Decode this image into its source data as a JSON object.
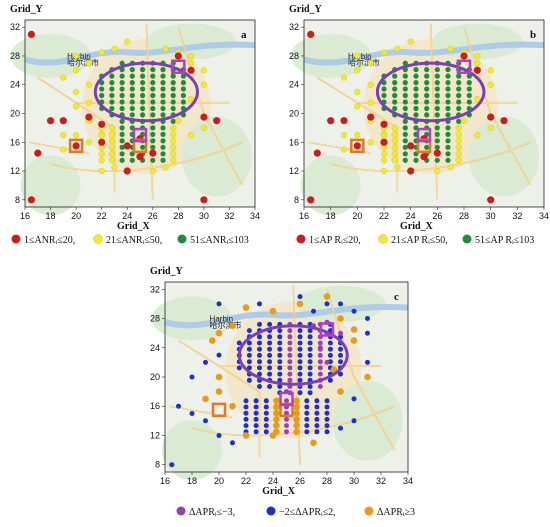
{
  "colors": {
    "red": "#c81e1e",
    "yellow": "#f2ea2a",
    "green": "#1f8c3a",
    "purple": "#9b3fb8",
    "blue": "#1e2fd0",
    "orange": "#e89a1a",
    "ellipse": "#7a3fb5",
    "square_purple": "#b03fc8",
    "square_orange": "#e07a20"
  },
  "chart_data": [
    {
      "type": "scatter",
      "panel_label": "a",
      "map_label": "Harbin",
      "map_label_cn": "哈尔滨市",
      "xlabel": "Grid_X",
      "ylabel": "Grid_Y",
      "xlim": [
        16,
        34
      ],
      "ylim": [
        7,
        33
      ],
      "xticks": [
        "16",
        "18",
        "20",
        "22",
        "24",
        "26",
        "28",
        "30",
        "32",
        "34"
      ],
      "yticks": [
        "8",
        "12",
        "16",
        "20",
        "24",
        "28",
        "32"
      ],
      "legend": [
        "1≤ANRᵢ≤20,",
        "21≤ANRᵢ≤50,",
        "51≤ANRᵢ≤103"
      ],
      "ellipse": {
        "cx": 25.5,
        "cy": 23,
        "rx": 4.0,
        "ry": 4.0
      },
      "squares": [
        {
          "x": 20,
          "y": 15.5,
          "color": "orange"
        },
        {
          "x": 25,
          "y": 15.5,
          "color": "orange"
        },
        {
          "x": 25,
          "y": 17,
          "color": "purple"
        },
        {
          "x": 28,
          "y": 26.5,
          "color": "purple"
        }
      ]
    },
    {
      "type": "scatter",
      "panel_label": "b",
      "map_label": "Harbin",
      "map_label_cn": "哈尔滨市",
      "xlabel": "Grid_X",
      "ylabel": "Grid_Y",
      "xlim": [
        16,
        34
      ],
      "ylim": [
        7,
        33
      ],
      "xticks": [
        "16",
        "18",
        "20",
        "22",
        "24",
        "26",
        "28",
        "30",
        "32",
        "34"
      ],
      "yticks": [
        "8",
        "12",
        "16",
        "20",
        "24",
        "28",
        "32"
      ],
      "legend": [
        "1≤AP Rᵢ≤20,",
        "21≤AP Rᵢ≤50,",
        "51≤AP Rᵢ≤103"
      ],
      "ellipse": {
        "cx": 25.5,
        "cy": 23,
        "rx": 4.0,
        "ry": 4.0
      },
      "squares": [
        {
          "x": 20,
          "y": 15.5,
          "color": "orange"
        },
        {
          "x": 25,
          "y": 15.5,
          "color": "orange"
        },
        {
          "x": 25,
          "y": 17,
          "color": "purple"
        },
        {
          "x": 28,
          "y": 26.5,
          "color": "purple"
        }
      ]
    },
    {
      "type": "scatter",
      "panel_label": "c",
      "map_label": "Harbin",
      "map_label_cn": "哈尔滨市",
      "xlabel": "Grid_X",
      "ylabel": "Grid_Y",
      "xlim": [
        16,
        34
      ],
      "ylim": [
        7,
        33
      ],
      "xticks": [
        "16",
        "18",
        "20",
        "22",
        "24",
        "26",
        "28",
        "30",
        "32",
        "34"
      ],
      "yticks": [
        "8",
        "12",
        "16",
        "20",
        "24",
        "28",
        "32"
      ],
      "legend": [
        "ΔAPRᵢ≤−3,",
        "−2≤ΔAPRᵢ≤2,",
        "ΔAPRᵢ≥3"
      ],
      "ellipse": {
        "cx": 25.5,
        "cy": 23,
        "rx": 4.0,
        "ry": 4.0
      },
      "squares": [
        {
          "x": 20,
          "y": 15.5,
          "color": "orange"
        },
        {
          "x": 25,
          "y": 15.5,
          "color": "orange"
        },
        {
          "x": 25,
          "y": 17,
          "color": "purple"
        },
        {
          "x": 28,
          "y": 26.5,
          "color": "purple"
        }
      ]
    }
  ]
}
